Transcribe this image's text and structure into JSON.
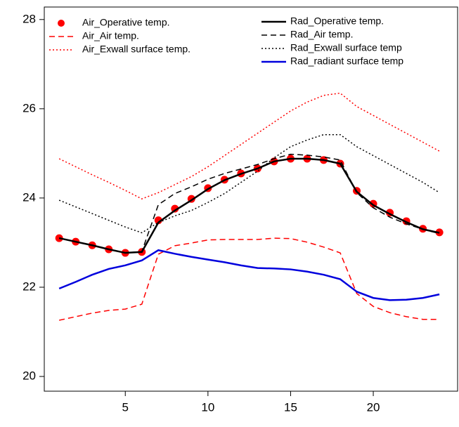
{
  "chart_data": {
    "type": "line",
    "x": [
      1,
      2,
      3,
      4,
      5,
      6,
      7,
      8,
      9,
      10,
      11,
      12,
      13,
      14,
      15,
      16,
      17,
      18,
      19,
      20,
      21,
      22,
      23,
      24
    ],
    "xlim": [
      0.1,
      25.1
    ],
    "xticks": [
      5,
      10,
      15,
      20
    ],
    "ylim": [
      19.67,
      28.28
    ],
    "yticks": [
      20,
      22,
      24,
      26,
      28
    ],
    "series": [
      {
        "name": "Air_Operative temp.",
        "color": "#ff0000",
        "linestyle": "none",
        "marker": "circle",
        "linewidth": 0,
        "values": [
          23.1,
          23.02,
          22.94,
          22.85,
          22.77,
          22.79,
          23.5,
          23.76,
          23.98,
          24.22,
          24.41,
          24.55,
          24.66,
          24.82,
          24.88,
          24.88,
          24.85,
          24.77,
          24.16,
          23.87,
          23.67,
          23.48,
          23.31,
          23.23
        ]
      },
      {
        "name": "Air_Air temp.",
        "color": "#ff0000",
        "linestyle": "dashed",
        "marker": "none",
        "linewidth": 1.5,
        "values": [
          21.26,
          21.34,
          21.42,
          21.48,
          21.51,
          21.62,
          22.74,
          22.93,
          22.99,
          23.06,
          23.07,
          23.07,
          23.07,
          23.1,
          23.09,
          23.01,
          22.9,
          22.77,
          21.86,
          21.57,
          21.43,
          21.34,
          21.28,
          21.28
        ]
      },
      {
        "name": "Air_Exwall surface temp.",
        "color": "#ff0000",
        "linestyle": "dotted",
        "marker": "none",
        "linewidth": 1.5,
        "values": [
          24.88,
          24.7,
          24.52,
          24.35,
          24.17,
          23.98,
          24.12,
          24.3,
          24.48,
          24.7,
          24.95,
          25.2,
          25.45,
          25.7,
          25.95,
          26.15,
          26.3,
          26.35,
          26.05,
          25.85,
          25.65,
          25.45,
          25.25,
          25.05
        ]
      },
      {
        "name": "Rad_Operative temp.",
        "color": "#000000",
        "linestyle": "solid",
        "marker": "none",
        "linewidth": 2.5,
        "values": [
          23.1,
          23.02,
          22.94,
          22.85,
          22.77,
          22.79,
          23.45,
          23.72,
          23.95,
          24.2,
          24.4,
          24.54,
          24.66,
          24.82,
          24.88,
          24.88,
          24.85,
          24.77,
          24.14,
          23.84,
          23.64,
          23.46,
          23.3,
          23.22
        ]
      },
      {
        "name": "Rad_Air temp.",
        "color": "#000000",
        "linestyle": "dashed",
        "marker": "none",
        "linewidth": 1.5,
        "values": [
          23.1,
          23.02,
          22.94,
          22.85,
          22.77,
          22.8,
          23.85,
          24.1,
          24.25,
          24.42,
          24.55,
          24.65,
          24.75,
          24.88,
          24.98,
          24.96,
          24.92,
          24.85,
          24.12,
          23.78,
          23.57,
          23.42,
          23.3,
          23.2
        ]
      },
      {
        "name": "Rad_Exwall surface temp",
        "color": "#000000",
        "linestyle": "dotted",
        "marker": "none",
        "linewidth": 1.5,
        "values": [
          23.95,
          23.8,
          23.65,
          23.5,
          23.35,
          23.22,
          23.45,
          23.6,
          23.72,
          23.9,
          24.1,
          24.35,
          24.6,
          24.9,
          25.15,
          25.3,
          25.42,
          25.42,
          25.15,
          24.95,
          24.75,
          24.55,
          24.35,
          24.12
        ]
      },
      {
        "name": "Rad_radiant surface temp",
        "color": "#0000dd",
        "linestyle": "solid",
        "marker": "none",
        "linewidth": 2.5,
        "values": [
          21.97,
          22.12,
          22.28,
          22.41,
          22.49,
          22.6,
          22.83,
          22.75,
          22.68,
          22.62,
          22.56,
          22.49,
          22.43,
          22.42,
          22.4,
          22.35,
          22.28,
          22.18,
          21.9,
          21.76,
          21.71,
          21.72,
          21.76,
          21.84
        ]
      }
    ]
  }
}
